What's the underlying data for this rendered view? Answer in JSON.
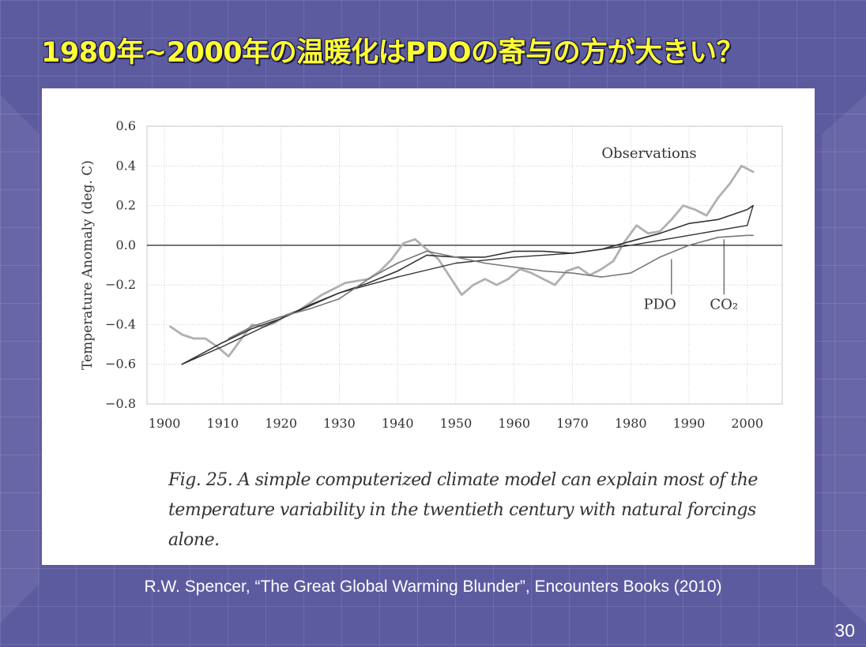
{
  "slide": {
    "title": "1980年~2000年の温暖化はPDOの寄与の方が大きい？",
    "source": "R.W. Spencer, “The Great Global Warming Blunder”, Encounters Books (2010)",
    "page_number": "30"
  },
  "figure": {
    "caption": "Fig. 25.  A simple computerized climate model can explain most of the temperature variability in the twentieth century with natural forcings alone."
  },
  "colors": {
    "background": "#5d5ba0",
    "title": "#ffff33",
    "grid": "#bbbbbb",
    "zero_line": "#222222",
    "model_line": "#333333",
    "co2_line": "#333333",
    "pdo_line": "#777777",
    "observations_line": "#b0b0b0"
  },
  "chart_data": {
    "type": "line",
    "ylabel": "Temperature Anomaly (deg. C)",
    "xlim": [
      1897,
      2006
    ],
    "ylim": [
      -0.8,
      0.6
    ],
    "x_ticks": [
      1900,
      1910,
      1920,
      1930,
      1940,
      1950,
      1960,
      1970,
      1980,
      1990,
      2000
    ],
    "x_tick_labels": [
      "1900",
      "1910",
      "1920",
      "1930",
      "1940",
      "1950",
      "1960",
      "1970",
      "1980",
      "1990",
      "2000"
    ],
    "y_ticks": [
      0.6,
      0.4,
      0.2,
      0.0,
      -0.2,
      -0.4,
      -0.6,
      -0.8
    ],
    "y_tick_labels": [
      "0.6",
      "0.4",
      "0.2",
      "0.0",
      "−0.2",
      "−0.4",
      "−0.6",
      "−0.8"
    ],
    "grid": true,
    "zero_line": true,
    "series": [
      {
        "key": "observations",
        "x": [
          1901,
          1903,
          1905,
          1907,
          1909,
          1911,
          1913,
          1915,
          1917,
          1919,
          1921,
          1923,
          1925,
          1927,
          1929,
          1931,
          1933,
          1935,
          1937,
          1939,
          1941,
          1943,
          1945,
          1947,
          1949,
          1951,
          1953,
          1955,
          1957,
          1959,
          1961,
          1963,
          1965,
          1967,
          1969,
          1971,
          1973,
          1975,
          1977,
          1979,
          1981,
          1983,
          1985,
          1987,
          1989,
          1991,
          1993,
          1995,
          1997,
          1999,
          2001
        ],
        "values": [
          -0.41,
          -0.45,
          -0.47,
          -0.47,
          -0.51,
          -0.56,
          -0.48,
          -0.4,
          -0.41,
          -0.39,
          -0.35,
          -0.33,
          -0.29,
          -0.25,
          -0.22,
          -0.19,
          -0.18,
          -0.17,
          -0.13,
          -0.07,
          0.01,
          0.03,
          -0.02,
          -0.07,
          -0.16,
          -0.25,
          -0.2,
          -0.17,
          -0.2,
          -0.17,
          -0.12,
          -0.14,
          -0.17,
          -0.2,
          -0.13,
          -0.11,
          -0.15,
          -0.12,
          -0.08,
          0.02,
          0.1,
          0.06,
          0.07,
          0.13,
          0.2,
          0.18,
          0.15,
          0.24,
          0.31,
          0.4,
          0.37
        ]
      },
      {
        "key": "model",
        "x": [
          1903,
          1910,
          1915,
          1920,
          1925,
          1930,
          1935,
          1940,
          1945,
          1950,
          1955,
          1960,
          1965,
          1970,
          1975,
          1980,
          1985,
          1990,
          1995,
          2000,
          2001
        ],
        "values": [
          -0.6,
          -0.49,
          -0.42,
          -0.37,
          -0.3,
          -0.24,
          -0.19,
          -0.13,
          -0.05,
          -0.06,
          -0.06,
          -0.03,
          -0.03,
          -0.04,
          -0.02,
          0.02,
          0.06,
          0.11,
          0.13,
          0.18,
          0.2
        ]
      },
      {
        "key": "co2",
        "x": [
          1903,
          1910,
          1920,
          1930,
          1940,
          1950,
          1960,
          1970,
          1980,
          1990,
          2000,
          2001
        ],
        "values": [
          -0.6,
          -0.51,
          -0.37,
          -0.24,
          -0.16,
          -0.09,
          -0.06,
          -0.04,
          0.0,
          0.05,
          0.1,
          0.2
        ]
      },
      {
        "key": "pdo",
        "x": [
          1911,
          1915,
          1920,
          1925,
          1930,
          1935,
          1940,
          1945,
          1950,
          1955,
          1960,
          1965,
          1970,
          1975,
          1980,
          1985,
          1990,
          1995,
          2000,
          2001
        ],
        "values": [
          -0.47,
          -0.41,
          -0.36,
          -0.32,
          -0.27,
          -0.17,
          -0.09,
          -0.03,
          -0.06,
          -0.09,
          -0.11,
          -0.13,
          -0.14,
          -0.16,
          -0.14,
          -0.06,
          0.0,
          0.04,
          0.05,
          0.05
        ]
      }
    ],
    "annotations": [
      {
        "key": "observations",
        "text": "Observations",
        "x": 1975,
        "y": 0.44
      },
      {
        "key": "pdo",
        "text": "PDO",
        "x": 1985,
        "y": -0.32,
        "arrow_to_x": 1987,
        "arrow_to_y": -0.07
      },
      {
        "key": "co2",
        "text": "CO₂",
        "x": 1996,
        "y": -0.32,
        "arrow_to_x": 1996,
        "arrow_to_y": 0.03
      }
    ]
  }
}
